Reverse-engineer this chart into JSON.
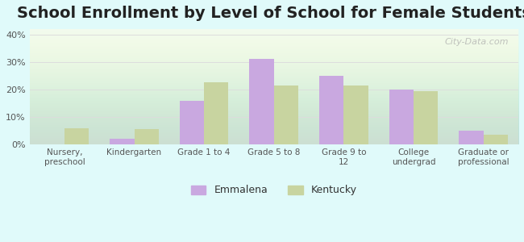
{
  "title": "School Enrollment by Level of School for Female Students",
  "categories": [
    "Nursery,\npreschool",
    "Kindergarten",
    "Grade 1 to 4",
    "Grade 5 to 8",
    "Grade 9 to\n12",
    "College\nundergrad",
    "Graduate or\nprofessional"
  ],
  "emmalena": [
    0,
    2,
    16,
    31,
    25,
    20,
    5
  ],
  "kentucky": [
    6,
    5.5,
    22.5,
    21.5,
    21.5,
    19.5,
    3.5
  ],
  "emmalena_color": "#c9a8e0",
  "kentucky_color": "#c8d4a0",
  "ylim": [
    0,
    42
  ],
  "yticks": [
    0,
    10,
    20,
    30,
    40
  ],
  "ytick_labels": [
    "0%",
    "10%",
    "20%",
    "30%",
    "40%"
  ],
  "background_color": "#e0fafa",
  "plot_bg_start": "#f5fff5",
  "plot_bg_end": "#fffff5",
  "legend_emmalena": "Emmalena",
  "legend_kentucky": "Kentucky",
  "bar_width": 0.35,
  "title_fontsize": 14,
  "axis_color": "#888888",
  "gridline_color": "#dddddd",
  "watermark": "City-Data.com"
}
